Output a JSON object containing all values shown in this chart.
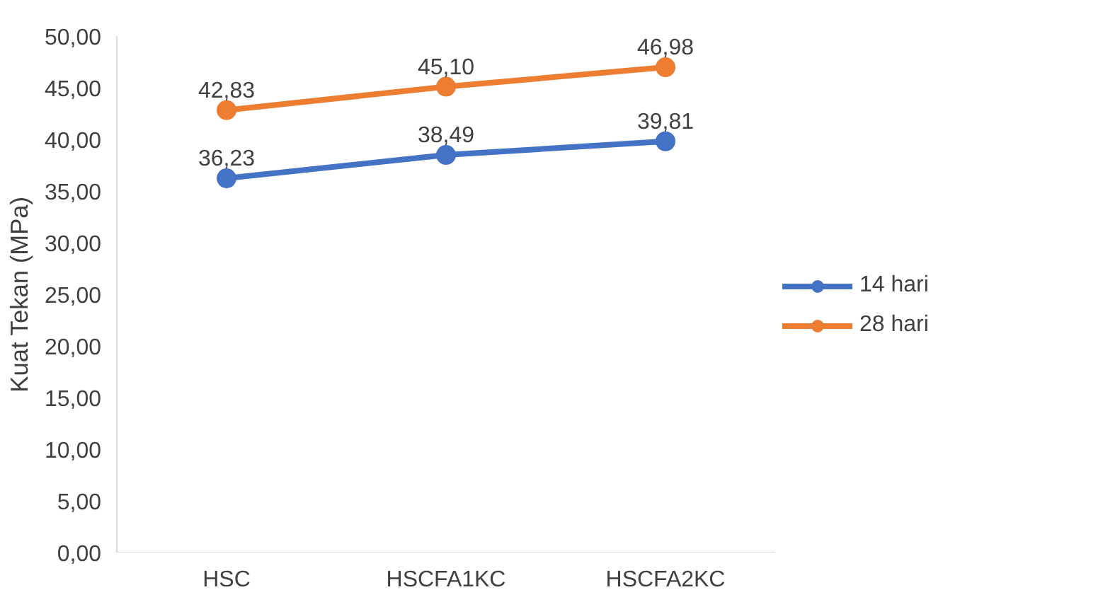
{
  "chart_data": {
    "type": "line",
    "ylabel": "Kuat Tekan (MPa)",
    "categories": [
      "HSC",
      "HSCFA1KC",
      "HSCFA2KC"
    ],
    "series": [
      {
        "name": "14 hari",
        "color": "#4472c4",
        "values": [
          36.23,
          38.49,
          39.81
        ],
        "value_labels": [
          "36,23",
          "38,49",
          "39,81"
        ]
      },
      {
        "name": "28 hari",
        "color": "#ed7d31",
        "values": [
          42.83,
          45.1,
          46.98
        ],
        "value_labels": [
          "42,83",
          "45,10",
          "46,98"
        ]
      }
    ],
    "ylim": [
      0,
      50
    ],
    "yticks": [
      {
        "value": 0,
        "label": "0,00"
      },
      {
        "value": 5,
        "label": "5,00"
      },
      {
        "value": 10,
        "label": "10,00"
      },
      {
        "value": 15,
        "label": "15,00"
      },
      {
        "value": 20,
        "label": "20,00"
      },
      {
        "value": 25,
        "label": "25,00"
      },
      {
        "value": 30,
        "label": "30,00"
      },
      {
        "value": 35,
        "label": "35,00"
      },
      {
        "value": 40,
        "label": "40,00"
      },
      {
        "value": 45,
        "label": "45,00"
      },
      {
        "value": 50,
        "label": "50,00"
      }
    ],
    "grid": false,
    "legend": "right",
    "marker": "circle",
    "line_style": "solid"
  }
}
